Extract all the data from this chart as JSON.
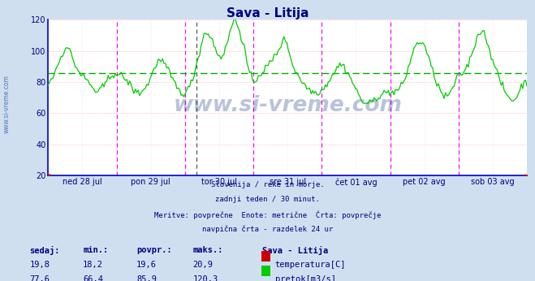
{
  "title": "Sava - Litija",
  "title_color": "#000080",
  "bg_color": "#d0dff0",
  "plot_bg_color": "#ffffff",
  "axis_color": "#0000cc",
  "tick_color": "#000080",
  "ylim": [
    20,
    120
  ],
  "yticks": [
    20,
    40,
    60,
    80,
    100,
    120
  ],
  "grid_color_h": "#ffaaaa",
  "grid_color_v": "#ffcccc",
  "avg_line_color": "#00aa00",
  "avg_line_value": 85.9,
  "vline_color_magenta": "#ff00ff",
  "vline_color_black": "#555555",
  "temp_color": "#cc0000",
  "flow_color": "#00cc00",
  "watermark_text": "www.si-vreme.com",
  "watermark_color": "#1a3a8a",
  "watermark_alpha": 0.3,
  "x_tick_labels": [
    "ned 28 jul",
    "pon 29 jul",
    "tor 30 jul",
    "sre 31 jul",
    "čet 01 avg",
    "pet 02 avg",
    "sob 03 avg"
  ],
  "x_tick_positions": [
    0.5,
    1.5,
    2.5,
    3.5,
    4.5,
    5.5,
    6.5
  ],
  "x_vline_positions": [
    1.0,
    2.0,
    3.0,
    4.0,
    5.0,
    6.0
  ],
  "x_vline_black_position": 2.17,
  "caption_lines": [
    "Slovenija / reke in morje.",
    "zadnji teden / 30 minut.",
    "Meritve: povprečne  Enote: metrične  Črta: povprečje",
    "navpična črta - razdelek 24 ur"
  ],
  "caption_color": "#000080",
  "legend_labels": [
    "temperatura[C]",
    "pretok[m3/s]"
  ],
  "legend_colors": [
    "#cc0000",
    "#00cc00"
  ],
  "stats_headers": [
    "sedaj:",
    "min.:",
    "povpr.:",
    "maks.:"
  ],
  "stats_temp": [
    "19,8",
    "18,2",
    "19,6",
    "20,9"
  ],
  "stats_flow": [
    "77,6",
    "66,4",
    "85,9",
    "120,3"
  ],
  "stats_color": "#000080",
  "stats_label": "Sava - Litija",
  "sidebar_text": "www.si-vreme.com",
  "sidebar_color": "#2255aa"
}
